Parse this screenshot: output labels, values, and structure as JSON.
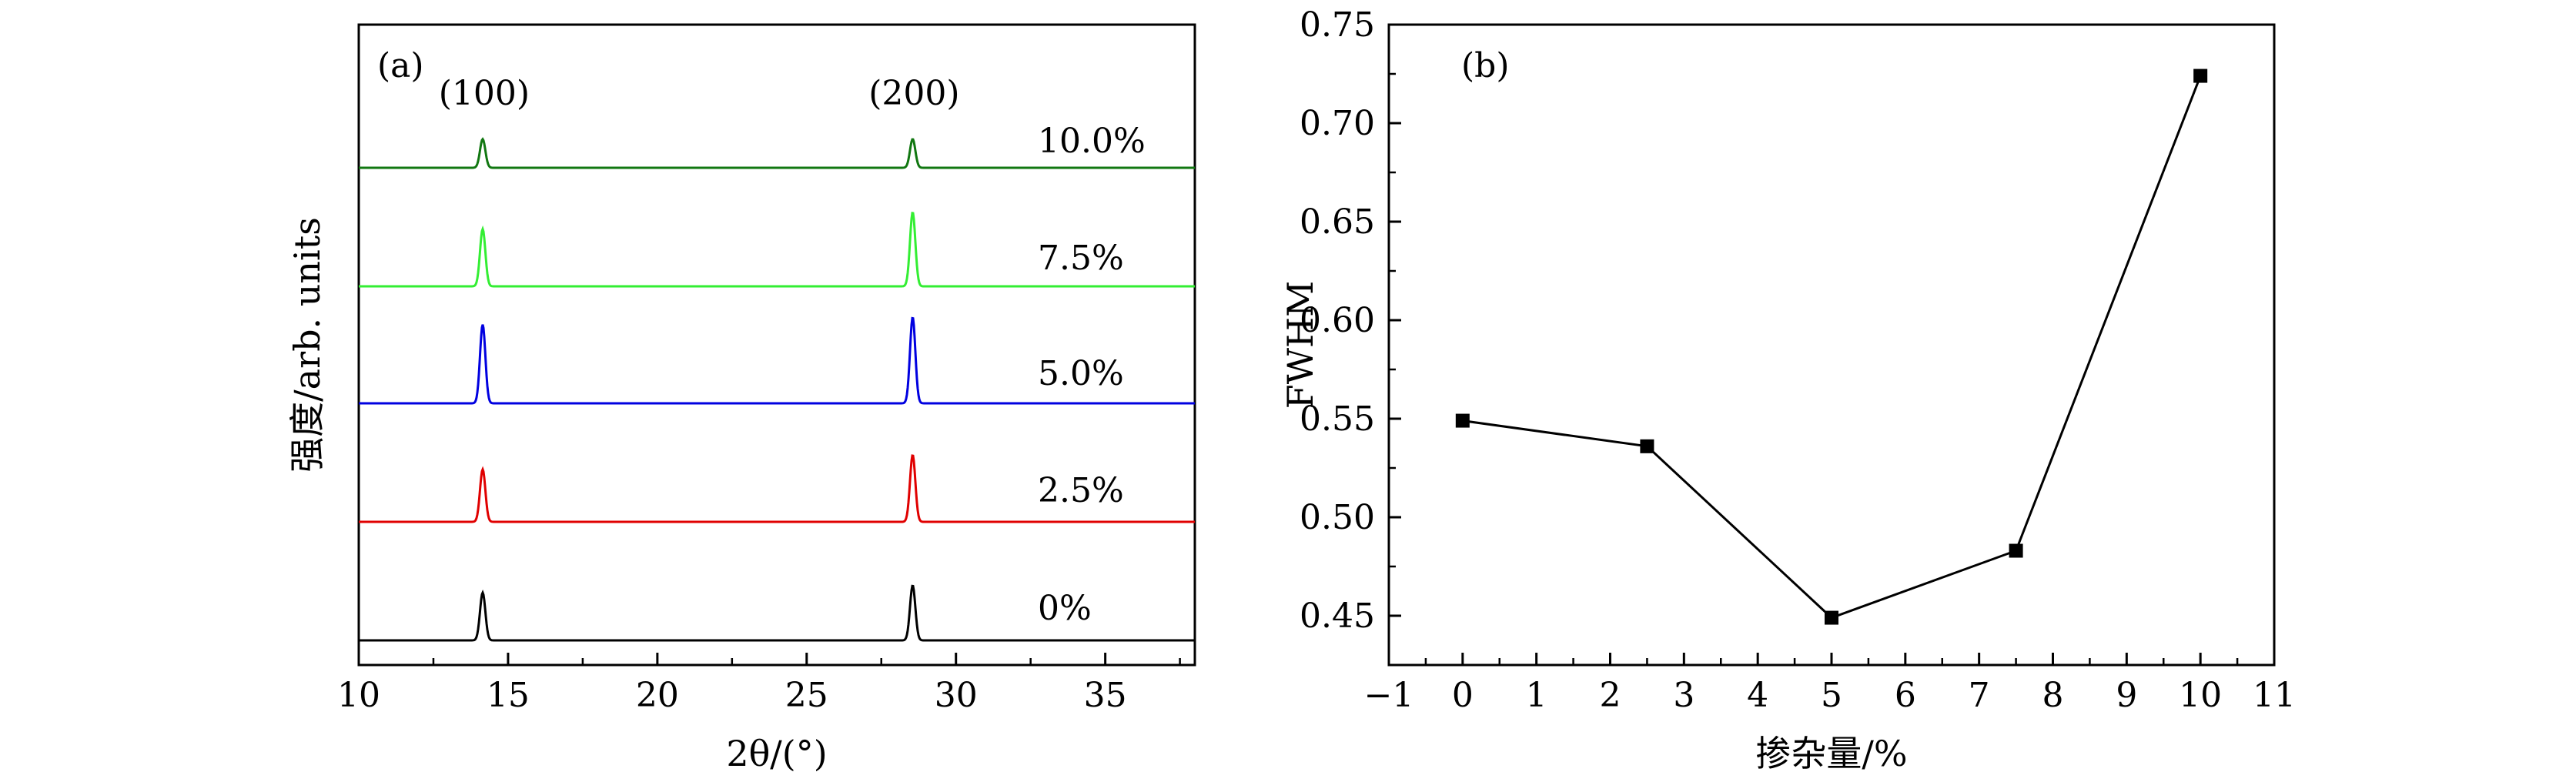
{
  "chart_data": [
    {
      "panel": "(a)",
      "type": "line",
      "xlabel": "2θ/(°)",
      "ylabel": "强度/arb. units",
      "xlim": [
        10,
        38
      ],
      "x_ticks": [
        "10",
        "15",
        "20",
        "25",
        "30",
        "35"
      ],
      "peak_labels": [
        {
          "text": "(100)",
          "x": 14.2
        },
        {
          "text": "(200)",
          "x": 28.6
        }
      ],
      "series": [
        {
          "name": "0%",
          "color": "#000000",
          "peaks": [
            {
              "x": 14.15,
              "height": 1.0
            },
            {
              "x": 28.55,
              "height": 1.15
            }
          ]
        },
        {
          "name": "2.5%",
          "color": "#e00000",
          "peaks": [
            {
              "x": 14.15,
              "height": 1.1
            },
            {
              "x": 28.55,
              "height": 1.4
            }
          ]
        },
        {
          "name": "5.0%",
          "color": "#0000e0",
          "peaks": [
            {
              "x": 14.15,
              "height": 1.65
            },
            {
              "x": 28.55,
              "height": 1.8
            }
          ]
        },
        {
          "name": "7.5%",
          "color": "#33ee33",
          "peaks": [
            {
              "x": 14.15,
              "height": 1.2
            },
            {
              "x": 28.55,
              "height": 1.55
            }
          ]
        },
        {
          "name": "10.0%",
          "color": "#117711",
          "peaks": [
            {
              "x": 14.15,
              "height": 0.6
            },
            {
              "x": 28.55,
              "height": 0.6
            }
          ]
        }
      ]
    },
    {
      "panel": "(b)",
      "type": "line",
      "xlabel": "掺杂量/%",
      "ylabel": "FWHM",
      "xlim": [
        -1,
        11
      ],
      "ylim": [
        0.425,
        0.75
      ],
      "x_ticks": [
        "−1",
        "0",
        "1",
        "2",
        "3",
        "4",
        "5",
        "6",
        "7",
        "8",
        "9",
        "10",
        "11"
      ],
      "y_ticks": [
        "0.45",
        "0.50",
        "0.55",
        "0.60",
        "0.65",
        "0.70",
        "0.75"
      ],
      "x": [
        0,
        2.5,
        5,
        7.5,
        10
      ],
      "y": [
        0.549,
        0.536,
        0.449,
        0.483,
        0.724
      ]
    }
  ]
}
